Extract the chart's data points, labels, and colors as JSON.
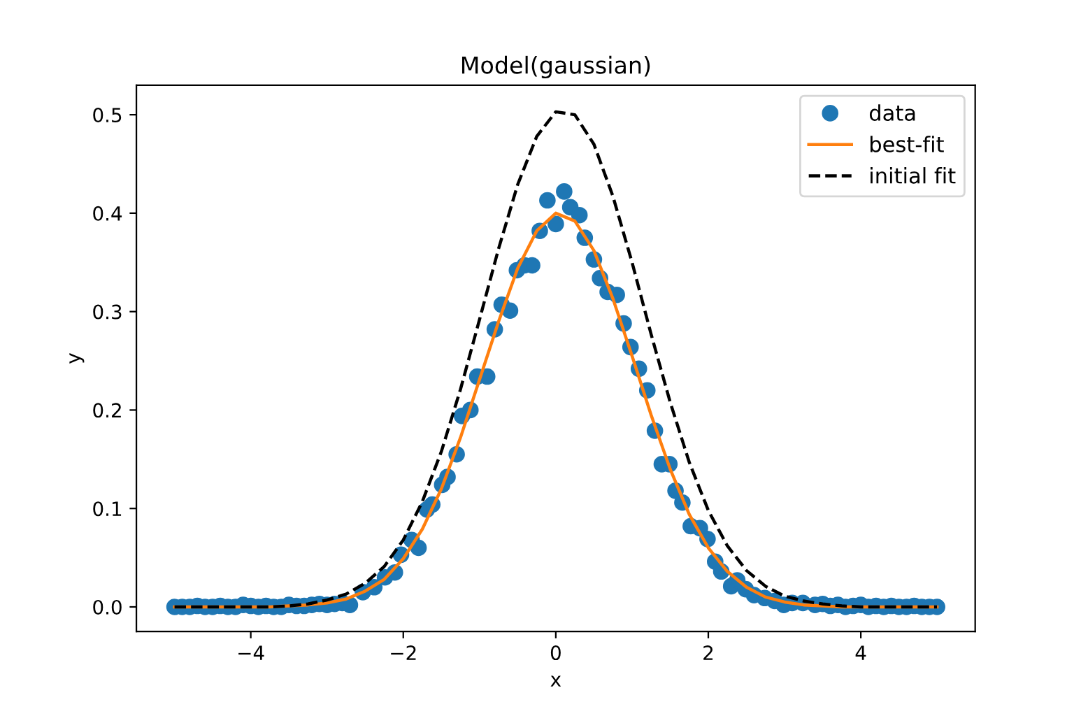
{
  "chart_data": {
    "type": "scatter",
    "title": "Model(gaussian)",
    "xlabel": "x",
    "ylabel": "y",
    "xlim": [
      -5.5,
      5.5
    ],
    "ylim": [
      -0.025,
      0.53
    ],
    "xticks": [
      {
        "value": -4,
        "label": "−4"
      },
      {
        "value": -2,
        "label": "−2"
      },
      0,
      2,
      4
    ],
    "yticks": [
      {
        "value": 0,
        "label": "0.0"
      },
      0.1,
      0.2,
      0.3,
      0.4,
      0.5
    ],
    "grid": false,
    "legend": "top right",
    "series": [
      {
        "name": "data",
        "marker": "circle",
        "color": "#1f77b4",
        "x": [
          -5.0,
          -4.9,
          -4.8,
          -4.7,
          -4.6,
          -4.5,
          -4.4,
          -4.3,
          -4.2,
          -4.1,
          -4.0,
          -3.9,
          -3.8,
          -3.7,
          -3.6,
          -3.5,
          -3.4,
          -3.3,
          -3.2,
          -3.1,
          -3.0,
          -2.9,
          -2.8,
          -2.7,
          -2.53,
          -2.38,
          -2.24,
          -2.11,
          -2.03,
          -1.89,
          -1.8,
          -1.69,
          -1.62,
          -1.49,
          -1.42,
          -1.3,
          -1.23,
          -1.12,
          -1.03,
          -0.9,
          -0.8,
          -0.71,
          -0.6,
          -0.51,
          -0.41,
          -0.31,
          -0.21,
          -0.11,
          0.0,
          0.11,
          0.19,
          0.31,
          0.38,
          0.5,
          0.58,
          0.68,
          0.8,
          0.89,
          0.98,
          1.09,
          1.2,
          1.3,
          1.39,
          1.49,
          1.57,
          1.66,
          1.77,
          1.89,
          1.99,
          2.09,
          2.17,
          2.3,
          2.38,
          2.49,
          2.6,
          2.74,
          2.87,
          2.99,
          3.1,
          3.24,
          3.4,
          3.5,
          3.6,
          3.7,
          3.8,
          3.9,
          4.0,
          4.1,
          4.2,
          4.3,
          4.4,
          4.5,
          4.6,
          4.7,
          4.8,
          4.9,
          5.0
        ],
        "values": [
          0.0,
          0.0,
          0.0,
          0.001,
          0.0,
          0.0,
          0.001,
          0.0,
          0.0,
          0.002,
          0.001,
          0.0,
          0.001,
          0.0,
          0.0,
          0.002,
          0.001,
          0.001,
          0.002,
          0.003,
          0.002,
          0.003,
          0.004,
          0.002,
          0.015,
          0.02,
          0.03,
          0.035,
          0.053,
          0.068,
          0.06,
          0.099,
          0.104,
          0.124,
          0.132,
          0.155,
          0.194,
          0.2,
          0.234,
          0.234,
          0.282,
          0.307,
          0.301,
          0.342,
          0.347,
          0.347,
          0.382,
          0.413,
          0.389,
          0.422,
          0.406,
          0.398,
          0.375,
          0.353,
          0.334,
          0.32,
          0.317,
          0.288,
          0.264,
          0.242,
          0.22,
          0.179,
          0.145,
          0.145,
          0.118,
          0.106,
          0.082,
          0.08,
          0.069,
          0.046,
          0.036,
          0.021,
          0.027,
          0.018,
          0.012,
          0.009,
          0.006,
          0.002,
          0.004,
          0.004,
          0.002,
          0.003,
          0.001,
          0.002,
          0.0,
          0.001,
          0.002,
          0.0,
          0.001,
          0.0,
          0.001,
          0.0,
          0.0,
          0.001,
          0.0,
          0.0,
          0.0
        ]
      },
      {
        "name": "best-fit",
        "type": "line",
        "marker": "none",
        "line_style": "solid",
        "color": "#ff7f0e",
        "x": [
          -5.0,
          -4.75,
          -4.5,
          -4.25,
          -4.0,
          -3.75,
          -3.5,
          -3.25,
          -3.0,
          -2.75,
          -2.5,
          -2.25,
          -2.0,
          -1.75,
          -1.5,
          -1.25,
          -1.0,
          -0.75,
          -0.5,
          -0.25,
          0.0,
          0.25,
          0.5,
          0.75,
          1.0,
          1.25,
          1.5,
          1.75,
          2.0,
          2.25,
          2.5,
          2.75,
          3.0,
          3.25,
          3.5,
          3.75,
          4.0,
          4.25,
          4.5,
          4.75,
          5.0
        ],
        "values": [
          0.0,
          0.0,
          0.0,
          0.0,
          0.0,
          0.0,
          0.001,
          0.002,
          0.004,
          0.008,
          0.016,
          0.028,
          0.049,
          0.079,
          0.12,
          0.172,
          0.231,
          0.29,
          0.344,
          0.382,
          0.4,
          0.392,
          0.362,
          0.313,
          0.255,
          0.195,
          0.14,
          0.094,
          0.06,
          0.036,
          0.02,
          0.01,
          0.005,
          0.002,
          0.001,
          0.0,
          0.0,
          0.0,
          0.0,
          0.0,
          0.0
        ]
      },
      {
        "name": "initial fit",
        "type": "line",
        "marker": "none",
        "line_style": "dashed",
        "color": "#000000",
        "x": [
          -5.0,
          -4.75,
          -4.5,
          -4.25,
          -4.0,
          -3.75,
          -3.5,
          -3.25,
          -3.0,
          -2.75,
          -2.5,
          -2.25,
          -2.0,
          -1.75,
          -1.5,
          -1.25,
          -1.0,
          -0.75,
          -0.5,
          -0.25,
          0.0,
          0.25,
          0.5,
          0.75,
          1.0,
          1.25,
          1.5,
          1.75,
          2.0,
          2.25,
          2.5,
          2.75,
          3.0,
          3.25,
          3.5,
          3.75,
          4.0,
          4.25,
          4.5,
          4.75,
          5.0
        ],
        "values": [
          0.0,
          0.0,
          0.0,
          0.0,
          0.0,
          0.0,
          0.001,
          0.003,
          0.007,
          0.013,
          0.024,
          0.041,
          0.068,
          0.107,
          0.158,
          0.221,
          0.292,
          0.364,
          0.429,
          0.478,
          0.503,
          0.5,
          0.47,
          0.417,
          0.35,
          0.277,
          0.208,
          0.147,
          0.098,
          0.062,
          0.037,
          0.021,
          0.011,
          0.006,
          0.003,
          0.001,
          0.0,
          0.0,
          0.0,
          0.0,
          0.0
        ]
      }
    ]
  }
}
